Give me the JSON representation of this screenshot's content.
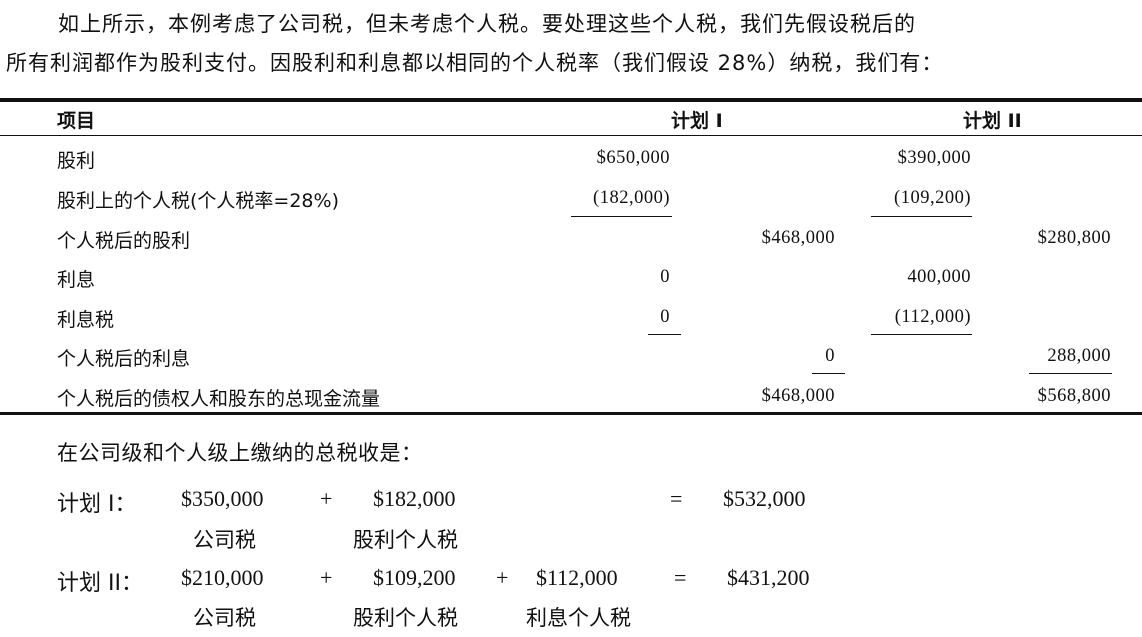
{
  "intro": {
    "line1": "如上所示，本例考虑了公司税，但未考虑个人税。要处理这些个人税，我们先假设税后的",
    "line2": "所有利润都作为股利支付。因股利和利息都以相同的个人税率（我们假设 28%）纳税，我们有："
  },
  "table": {
    "headers": {
      "item": "项目",
      "plan1": "计划 I",
      "plan2": "计划 II"
    },
    "rows": [
      {
        "label": "股利",
        "p1_a": "$650,000",
        "p1_b": "",
        "p2_a": "$390,000",
        "p2_b": ""
      },
      {
        "label": "股利上的个人税(个人税率=28%)",
        "p1_a": "(182,000)",
        "p1_b": "",
        "p2_a": "(109,200)",
        "p2_b": ""
      },
      {
        "label": "个人税后的股利",
        "p1_a": "",
        "p1_b": "$468,000",
        "p2_a": "",
        "p2_b": "$280,800"
      },
      {
        "label": "利息",
        "p1_a": "0",
        "p1_b": "",
        "p2_a": "400,000",
        "p2_b": ""
      },
      {
        "label": "利息税",
        "p1_a": "0",
        "p1_b": "",
        "p2_a": "(112,000)",
        "p2_b": ""
      },
      {
        "label": "个人税后的利息",
        "p1_a": "",
        "p1_b": "0",
        "p2_a": "",
        "p2_b": "288,000"
      },
      {
        "label": "个人税后的债权人和股东的总现金流量",
        "p1_a": "",
        "p1_b": "$468,000",
        "p2_a": "",
        "p2_b": "$568,800"
      }
    ]
  },
  "summary": {
    "heading": "在公司级和个人级上缴纳的总税收是：",
    "plan1": {
      "label": "计划 I：",
      "corp_tax": "$350,000",
      "plus1": "+",
      "div_tax": "$182,000",
      "eq": "=",
      "total": "$532,000",
      "corp_caption": "公司税",
      "div_caption": "股利个人税"
    },
    "plan2": {
      "label": "计划 II：",
      "corp_tax": "$210,000",
      "plus1": "+",
      "div_tax": "$109,200",
      "plus2": "+",
      "int_tax": "$112,000",
      "eq": "=",
      "total": "$431,200",
      "corp_caption": "公司税",
      "div_caption": "股利个人税",
      "int_caption": "利息个人税"
    }
  }
}
